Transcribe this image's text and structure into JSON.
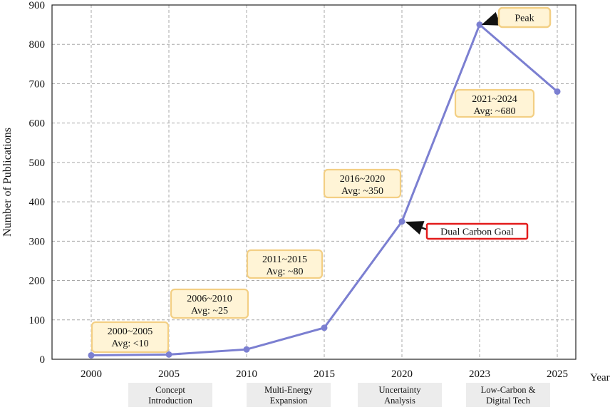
{
  "chart_data": {
    "type": "line",
    "title": "",
    "xlabel": "Year",
    "ylabel": "Number of Publications",
    "ylim": [
      0,
      900
    ],
    "yticks": [
      0,
      100,
      200,
      300,
      400,
      500,
      600,
      700,
      800,
      900
    ],
    "grid": true,
    "x": [
      "2000",
      "2005",
      "2010",
      "2015",
      "2020",
      "2023",
      "2025"
    ],
    "series": [
      {
        "name": "",
        "color": "#7b7fd1",
        "values": [
          10,
          12,
          25,
          80,
          350,
          850,
          680
        ]
      }
    ],
    "stage_labels": [
      {
        "text": "Concept Introduction",
        "lines": [
          "Concept",
          "Introduction"
        ]
      },
      {
        "text": "Multi-Energy Expansion",
        "lines": [
          "Multi-Energy",
          "Expansion"
        ]
      },
      {
        "text": "Uncertainty Analysis",
        "lines": [
          "Uncertainty",
          "Analysis"
        ]
      },
      {
        "text": "Low-Carbon & Digital Tech",
        "lines": [
          "Low-Carbon &",
          "Digital Tech"
        ]
      }
    ],
    "period_annotations": [
      {
        "period": "2000~2005",
        "avg": "Avg: <10"
      },
      {
        "period": "2006~2010",
        "avg": "Avg: ~25"
      },
      {
        "period": "2011~2015",
        "avg": "Avg: ~80"
      },
      {
        "period": "2016~2020",
        "avg": "Avg: ~350"
      },
      {
        "period": "2021~2024",
        "avg": "Avg: ~680"
      }
    ],
    "callouts": [
      {
        "text": "Dual Carbon Goal",
        "target_x": "2020",
        "target_y": 350,
        "style": "red-outline"
      },
      {
        "text": "Peak",
        "target_x": "2023",
        "target_y": 850,
        "style": "orange-outline"
      }
    ]
  },
  "colors": {
    "line": "#7b7fd1",
    "marker": "#7b7fd1",
    "annotation_fill": "#fff4d6",
    "annotation_border": "#f3cf84",
    "callout_red_border": "#e31b1b",
    "stage_fill": "#ececec",
    "grid": "#a8a8a8",
    "axis": "#222222"
  }
}
